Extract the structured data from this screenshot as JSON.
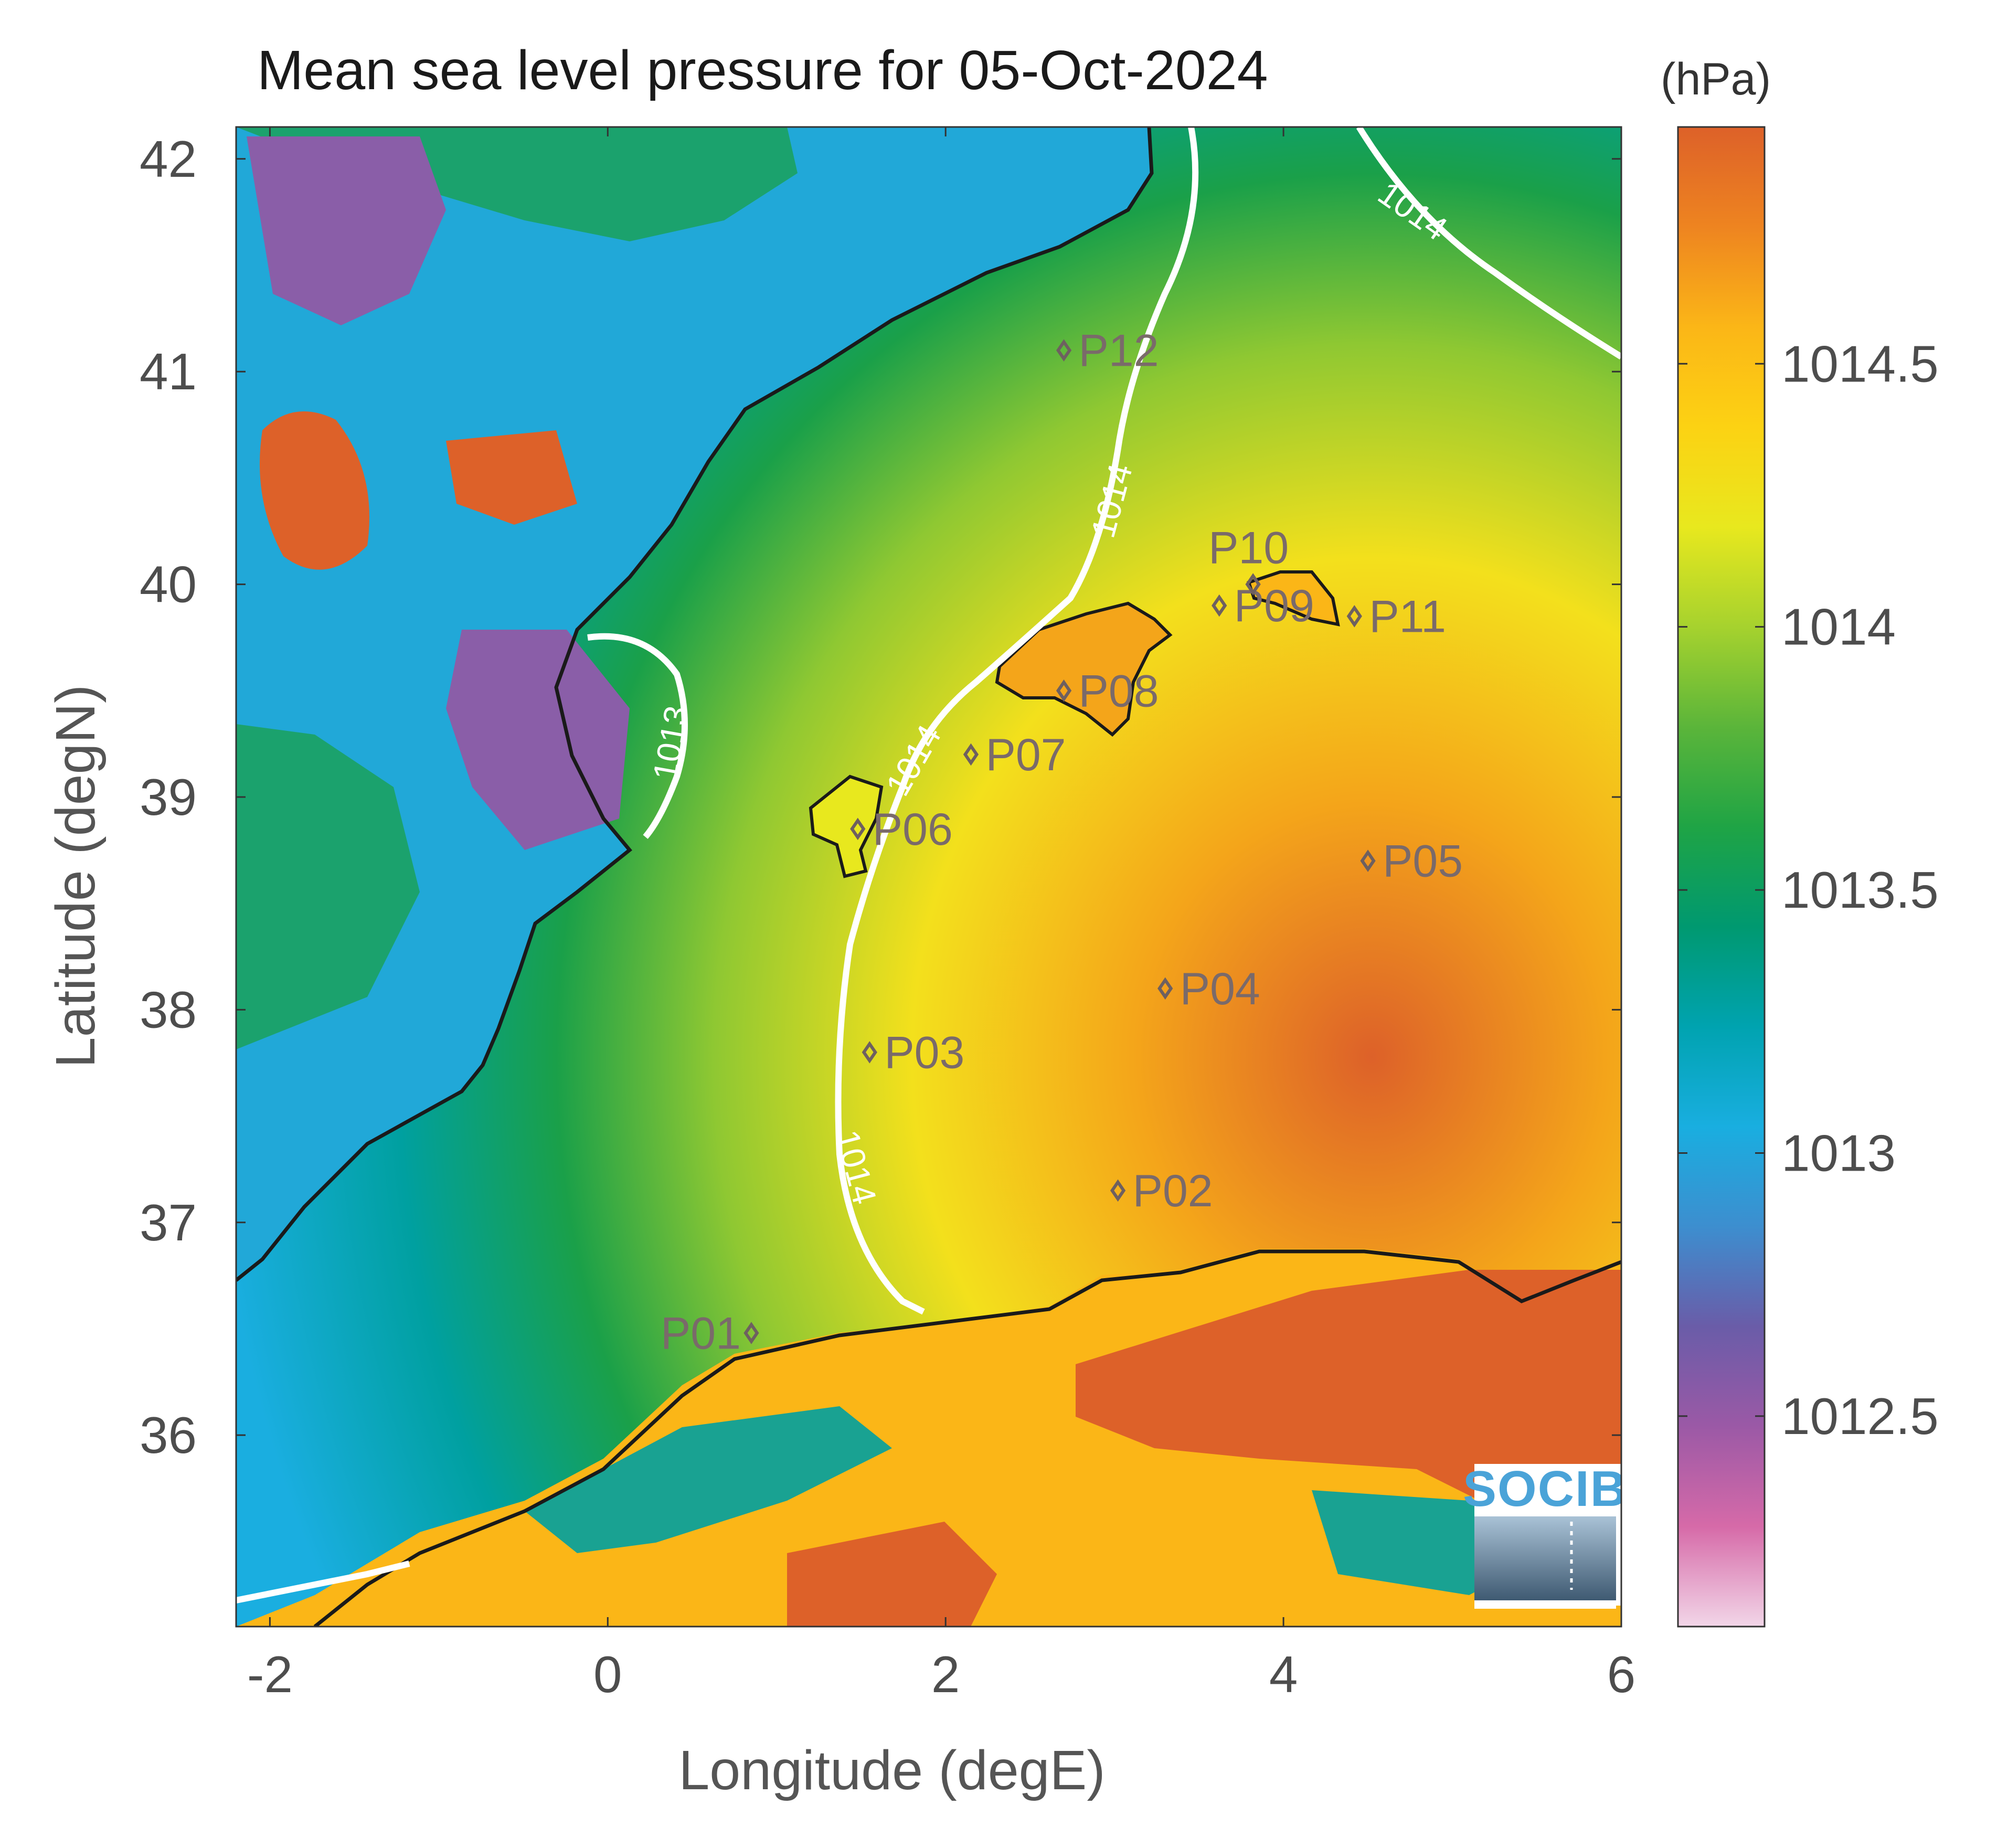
{
  "title": "Mean sea level pressure for 05-Oct-2024",
  "units": "(hPa)",
  "x_axis": {
    "label": "Longitude (degE)",
    "range": [
      -2.2,
      6
    ],
    "ticks": [
      {
        "v": -2,
        "label": "-2"
      },
      {
        "v": 0,
        "label": "0"
      },
      {
        "v": 2,
        "label": "2"
      },
      {
        "v": 4,
        "label": "4"
      },
      {
        "v": 6,
        "label": "6"
      }
    ]
  },
  "y_axis": {
    "label": "Latitude (degN)",
    "range": [
      35.1,
      42.15
    ],
    "ticks": [
      {
        "v": 36,
        "label": "36"
      },
      {
        "v": 37,
        "label": "37"
      },
      {
        "v": 38,
        "label": "38"
      },
      {
        "v": 39,
        "label": "39"
      },
      {
        "v": 40,
        "label": "40"
      },
      {
        "v": 41,
        "label": "41"
      },
      {
        "v": 42,
        "label": "42"
      }
    ]
  },
  "colorbar": {
    "range": [
      1012.1,
      1014.95
    ],
    "ticks": [
      {
        "v": 1012.5,
        "label": "1012.5"
      },
      {
        "v": 1013,
        "label": "1013"
      },
      {
        "v": 1013.5,
        "label": "1013.5"
      },
      {
        "v": 1014,
        "label": "1014"
      },
      {
        "v": 1014.5,
        "label": "1014.5"
      }
    ],
    "colors": [
      "#f2d6e8",
      "#d66aa8",
      "#9b59a6",
      "#6a5ca8",
      "#3d8ecf",
      "#19aee0",
      "#00a3b0",
      "#009970",
      "#1fa445",
      "#5bb53a",
      "#a6d22e",
      "#e8e81e",
      "#fcd213",
      "#fbb617",
      "#ee8420",
      "#dd6129"
    ]
  },
  "contours": [
    {
      "level_label": "1013",
      "color": "#ffffff"
    },
    {
      "level_label": "1014",
      "color": "#ffffff"
    }
  ],
  "stations": [
    {
      "id": "P01",
      "lon": 0.85,
      "lat": 36.48
    },
    {
      "id": "P02",
      "lon": 3.02,
      "lat": 37.15
    },
    {
      "id": "P03",
      "lon": 1.55,
      "lat": 37.8
    },
    {
      "id": "P04",
      "lon": 3.3,
      "lat": 38.1
    },
    {
      "id": "P05",
      "lon": 4.5,
      "lat": 38.7
    },
    {
      "id": "P06",
      "lon": 1.48,
      "lat": 38.85
    },
    {
      "id": "P07",
      "lon": 2.15,
      "lat": 39.2
    },
    {
      "id": "P08",
      "lon": 2.7,
      "lat": 39.5
    },
    {
      "id": "P09",
      "lon": 3.62,
      "lat": 39.9
    },
    {
      "id": "P10",
      "lon": 3.82,
      "lat": 40.0
    },
    {
      "id": "P11",
      "lon": 4.42,
      "lat": 39.85
    },
    {
      "id": "P12",
      "lon": 2.7,
      "lat": 41.1
    }
  ],
  "logo": {
    "text": "SOCIB"
  }
}
